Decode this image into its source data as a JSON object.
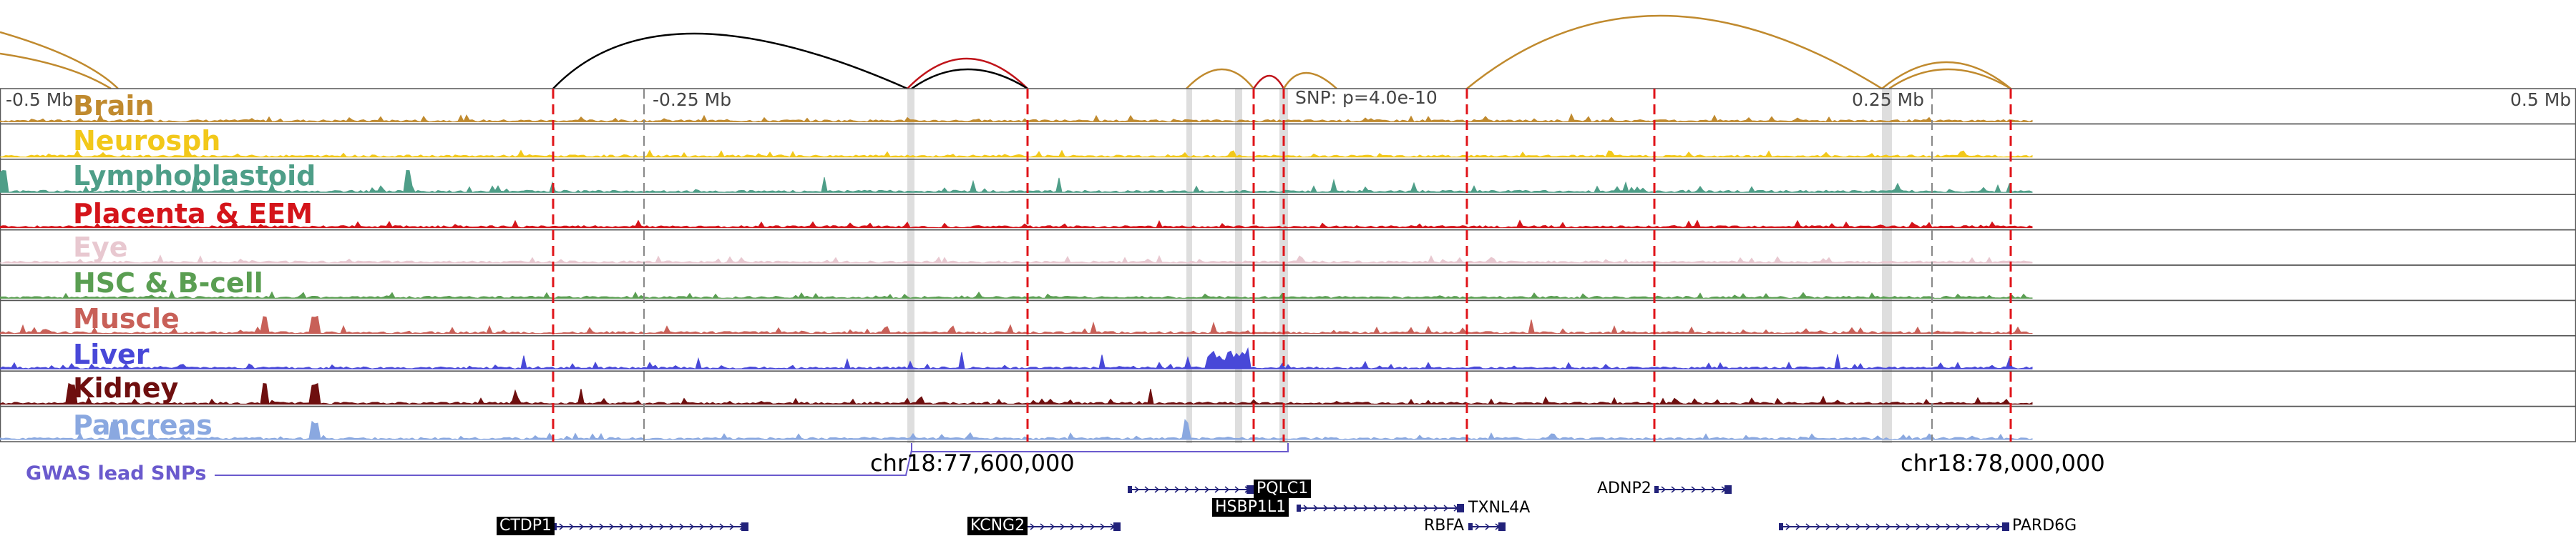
{
  "colors": {
    "arc_black": "#000000",
    "arc_gold": "#C08A2E",
    "arc_red": "#C0141A",
    "track_border": "#555555",
    "highlight_red": "#E0141A",
    "highlight_gray": "#D6D6D6",
    "gene_blue": "#22227A",
    "gwas_purple": "#6A5ACD"
  },
  "axis": {
    "labels": [
      "-0.5 Mb",
      "-0.25 Mb",
      "0.25 Mb",
      "0.5 Mb"
    ],
    "snp_label": "SNP: p=4.0e-10"
  },
  "tracks": [
    {
      "name": "Brain",
      "color": "#C08A2E",
      "signal": "low"
    },
    {
      "name": "Neurosph",
      "color": "#F2C81A",
      "signal": "low"
    },
    {
      "name": "Lymphoblastoid",
      "color": "#4E9E88",
      "signal": "medium"
    },
    {
      "name": "Placenta & EEM",
      "color": "#D4141A",
      "signal": "low"
    },
    {
      "name": "Eye",
      "color": "#E8C8D0",
      "signal": "low"
    },
    {
      "name": "HSC & B-cell",
      "color": "#5A9E52",
      "signal": "low"
    },
    {
      "name": "Muscle",
      "color": "#C86058",
      "signal": "medium"
    },
    {
      "name": "Liver",
      "color": "#4848D8",
      "signal": "medium"
    },
    {
      "name": "Kidney",
      "color": "#6E0F0F",
      "signal": "medium"
    },
    {
      "name": "Pancreas",
      "color": "#8AA8E0",
      "signal": "low"
    }
  ],
  "coordinates": [
    "chr18:77,600,000",
    "chr18:78,000,000"
  ],
  "gwas": {
    "label": "GWAS lead SNPs"
  },
  "genes": [
    {
      "name": "PQLC1",
      "boxed": true
    },
    {
      "name": "HSBP1L1",
      "boxed": true
    },
    {
      "name": "TXNL4A",
      "boxed": false
    },
    {
      "name": "RBFA",
      "boxed": false
    },
    {
      "name": "ADNP2",
      "boxed": false
    },
    {
      "name": "CTDP1",
      "boxed": true
    },
    {
      "name": "KCNG2",
      "boxed": true
    },
    {
      "name": "PARD6G",
      "boxed": false
    }
  ]
}
